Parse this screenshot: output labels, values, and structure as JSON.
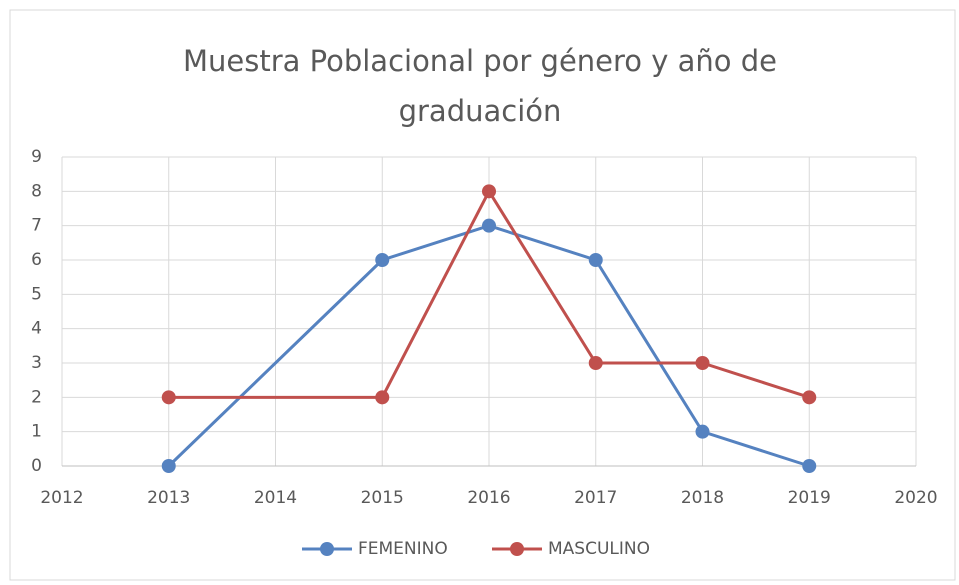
{
  "chart_data": {
    "type": "line",
    "title": "Muestra Poblacional por género y año de graduación",
    "x": [
      2013,
      2015,
      2016,
      2017,
      2018,
      2019
    ],
    "series": [
      {
        "name": "FEMENINO",
        "color": "#5582c0",
        "values": [
          0,
          6,
          7,
          6,
          1,
          0
        ]
      },
      {
        "name": "MASCULINO",
        "color": "#c0504d",
        "values": [
          2,
          2,
          8,
          3,
          3,
          2
        ]
      }
    ],
    "xlim": [
      2012,
      2020
    ],
    "xticks": [
      2012,
      2013,
      2014,
      2015,
      2016,
      2017,
      2018,
      2019,
      2020
    ],
    "ylim": [
      0,
      9
    ],
    "yticks": [
      0,
      1,
      2,
      3,
      4,
      5,
      6,
      7,
      8,
      9
    ],
    "grid": true,
    "legend": "bottom"
  }
}
